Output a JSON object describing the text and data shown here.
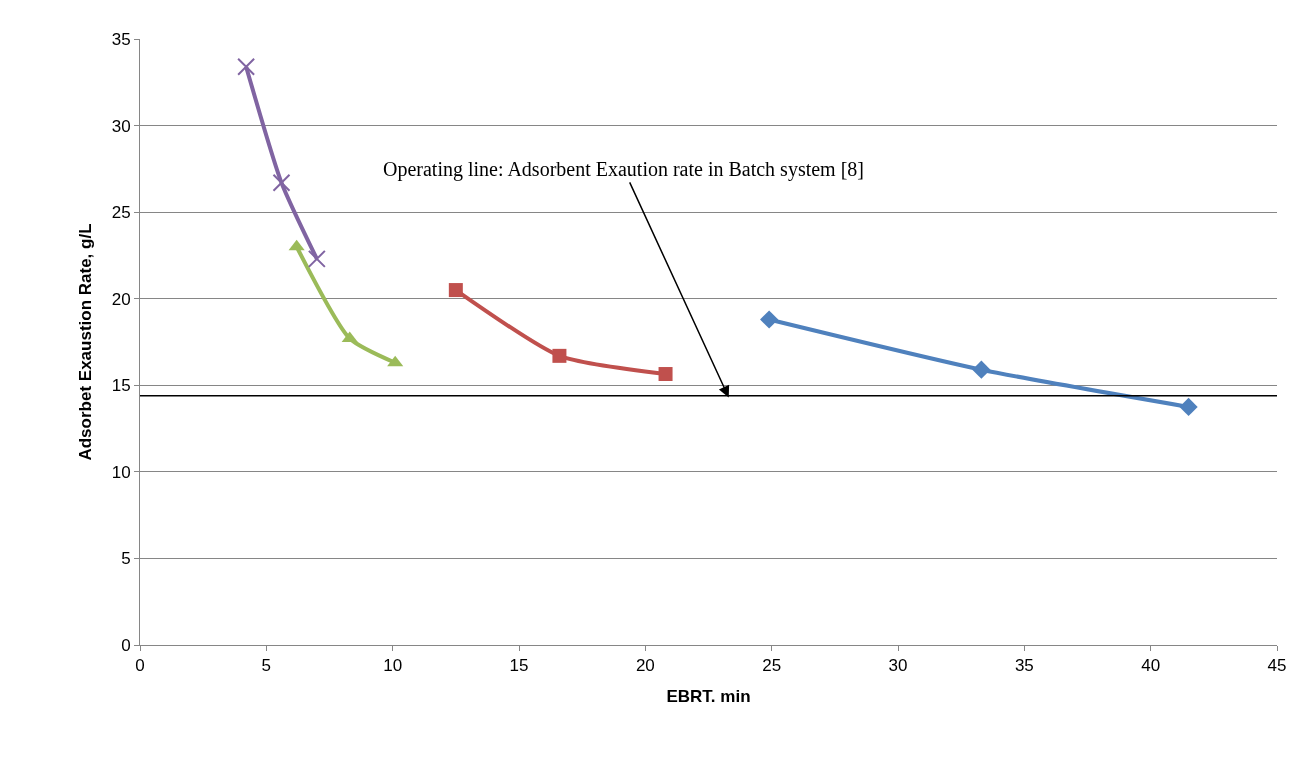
{
  "chart_data": {
    "type": "line",
    "xlabel": "EBRT. min",
    "ylabel": "Adsorbet Exaustion Rate, g/L",
    "xlim": [
      0,
      45
    ],
    "xticks": [
      0,
      5,
      10,
      15,
      20,
      25,
      30,
      35,
      40,
      45
    ],
    "ylim": [
      0,
      35
    ],
    "yticks": [
      0,
      5,
      10,
      15,
      20,
      25,
      30,
      35
    ],
    "grid": "y",
    "series": [
      {
        "color": "#4f81bd",
        "marker": "diamond",
        "x": [
          24.9,
          33.3,
          41.5
        ],
        "values": [
          18.8,
          15.9,
          13.75
        ]
      },
      {
        "color": "#c0504d",
        "marker": "square",
        "x": [
          12.5,
          16.6,
          20.8
        ],
        "values": [
          20.5,
          16.7,
          15.65
        ]
      },
      {
        "color": "#9bbb59",
        "marker": "triangle",
        "x": [
          6.2,
          8.3,
          10.1
        ],
        "values": [
          23.0,
          17.7,
          16.3
        ]
      },
      {
        "color": "#8064a2",
        "marker": "cross",
        "x": [
          4.2,
          5.6,
          7.0
        ],
        "values": [
          33.4,
          26.7,
          22.3
        ]
      }
    ],
    "ref_lines": [
      {
        "axis": "y",
        "value": 14.4,
        "color": "#000000"
      }
    ],
    "annotations": [
      {
        "text": "Operating line: Adsorbent Exaution rate in Batch system [8]",
        "x": 23.3,
        "y": 14.3
      }
    ]
  }
}
